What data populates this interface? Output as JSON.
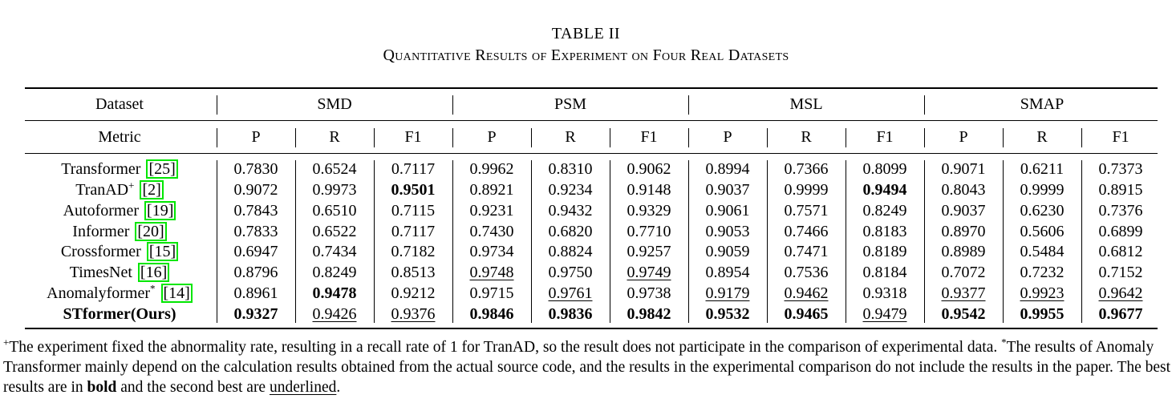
{
  "caption": {
    "label": "TABLE II",
    "title": "Quantitative Results of Experiment on Four Real Datasets"
  },
  "header": {
    "dataset_label": "Dataset",
    "metric_label": "Metric",
    "datasets": [
      "SMD",
      "PSM",
      "MSL",
      "SMAP"
    ],
    "metrics": [
      "P",
      "R",
      "F1",
      "P",
      "R",
      "F1",
      "P",
      "R",
      "F1",
      "P",
      "R",
      "F1"
    ]
  },
  "rows": [
    {
      "name": "Transformer",
      "ref": "25",
      "mark": "",
      "values": [
        "0.7830",
        "0.6524",
        "0.7117",
        "0.9962",
        "0.8310",
        "0.9062",
        "0.8994",
        "0.7366",
        "0.8099",
        "0.9071",
        "0.6211",
        "0.7373"
      ],
      "bold": [],
      "underline": []
    },
    {
      "name": "TranAD",
      "ref": "2",
      "mark": "+",
      "values": [
        "0.9072",
        "0.9973",
        "0.9501",
        "0.8921",
        "0.9234",
        "0.9148",
        "0.9037",
        "0.9999",
        "0.9494",
        "0.8043",
        "0.9999",
        "0.8915"
      ],
      "bold": [
        2,
        8
      ],
      "underline": []
    },
    {
      "name": "Autoformer",
      "ref": "19",
      "mark": "",
      "values": [
        "0.7843",
        "0.6510",
        "0.7115",
        "0.9231",
        "0.9432",
        "0.9329",
        "0.9061",
        "0.7571",
        "0.8249",
        "0.9037",
        "0.6230",
        "0.7376"
      ],
      "bold": [],
      "underline": []
    },
    {
      "name": "Informer",
      "ref": "20",
      "mark": "",
      "values": [
        "0.7833",
        "0.6522",
        "0.7117",
        "0.7430",
        "0.6820",
        "0.7710",
        "0.9053",
        "0.7466",
        "0.8183",
        "0.8970",
        "0.5606",
        "0.6899"
      ],
      "bold": [],
      "underline": []
    },
    {
      "name": "Crossformer",
      "ref": "15",
      "mark": "",
      "values": [
        "0.6947",
        "0.7434",
        "0.7182",
        "0.9734",
        "0.8824",
        "0.9257",
        "0.9059",
        "0.7471",
        "0.8189",
        "0.8989",
        "0.5484",
        "0.6812"
      ],
      "bold": [],
      "underline": []
    },
    {
      "name": "TimesNet",
      "ref": "16",
      "mark": "",
      "values": [
        "0.8796",
        "0.8249",
        "0.8513",
        "0.9748",
        "0.9750",
        "0.9749",
        "0.8954",
        "0.7536",
        "0.8184",
        "0.7072",
        "0.7232",
        "0.7152"
      ],
      "bold": [],
      "underline": [
        3,
        5
      ]
    },
    {
      "name": "Anomalyformer",
      "ref": "14",
      "mark": "*",
      "values": [
        "0.8961",
        "0.9478",
        "0.9212",
        "0.9715",
        "0.9761",
        "0.9738",
        "0.9179",
        "0.9462",
        "0.9318",
        "0.9377",
        "0.9923",
        "0.9642"
      ],
      "bold": [
        1
      ],
      "underline": [
        4,
        6,
        7,
        9,
        10,
        11
      ]
    },
    {
      "name": "STformer(Ours)",
      "ref": "",
      "mark": "",
      "name_bold": true,
      "values": [
        "0.9327",
        "0.9426",
        "0.9376",
        "0.9846",
        "0.9836",
        "0.9842",
        "0.9532",
        "0.9465",
        "0.9479",
        "0.9542",
        "0.9955",
        "0.9677"
      ],
      "bold": [
        0,
        3,
        4,
        5,
        6,
        7,
        9,
        10,
        11
      ],
      "underline": [
        1,
        2,
        8
      ]
    }
  ],
  "footnote": {
    "plus_mark": "+",
    "plus_text": "The experiment fixed the abnormality rate, resulting in a recall rate of 1 for TranAD, so the result does not participate in the comparison of experimental data.",
    "star_mark": "*",
    "star_text": "The results of Anomaly Transformer mainly depend on the calculation results obtained from the actual source code, and the results in the experimental comparison do not include the results in the paper.",
    "best_pre": "The best results are in",
    "best_word": "bold",
    "best_mid": "and the second best are",
    "second_word": "underlined",
    "best_end": "."
  }
}
